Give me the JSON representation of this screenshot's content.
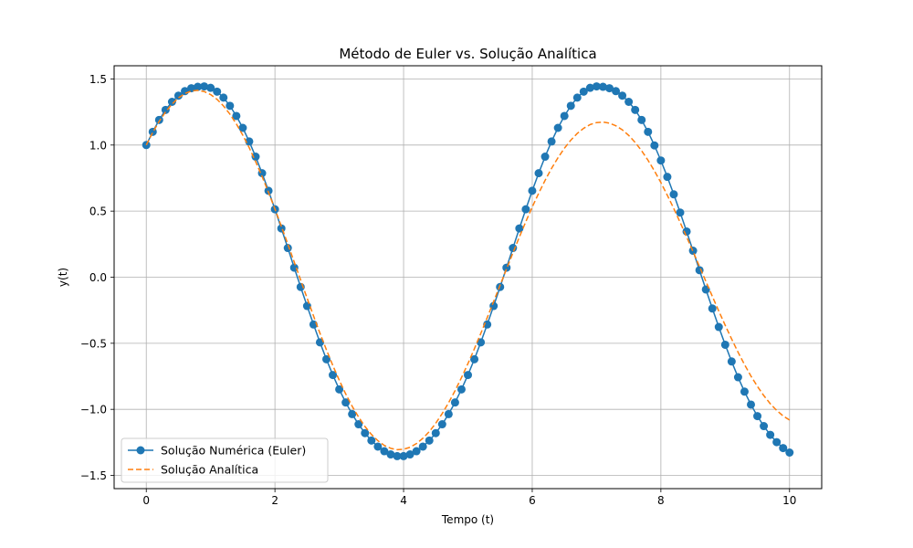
{
  "chart_data": {
    "type": "line",
    "title": "Método de Euler vs. Solução Analítica",
    "xlabel": "Tempo (t)",
    "ylabel": "y(t)",
    "xlim": [
      -0.5,
      10.5
    ],
    "ylim": [
      -1.6,
      1.6
    ],
    "xticks": [
      0,
      2,
      4,
      6,
      8,
      10
    ],
    "xtick_labels": [
      "0",
      "2",
      "4",
      "6",
      "8",
      "10"
    ],
    "yticks": [
      -1.5,
      -1.0,
      -0.5,
      0.0,
      0.5,
      1.0,
      1.5
    ],
    "ytick_labels": [
      "−1.5",
      "−1.0",
      "−0.5",
      "0.0",
      "0.5",
      "1.0",
      "1.5"
    ],
    "grid": true,
    "legend_position": "lower-left",
    "series": [
      {
        "name": "Solução Numérica (Euler)",
        "style": "solid-line-with-circle-markers",
        "color": "#1f77b4",
        "x": [
          0.0,
          0.1,
          0.2,
          0.3,
          0.4,
          0.5,
          0.6,
          0.7,
          0.8,
          0.9,
          1.0,
          1.1,
          1.2,
          1.3,
          1.4,
          1.5,
          1.6,
          1.7,
          1.8,
          1.9,
          2.0,
          2.1,
          2.2,
          2.3,
          2.4,
          2.5,
          2.6,
          2.7,
          2.8,
          2.9,
          3.0,
          3.1,
          3.2,
          3.3,
          3.4,
          3.5,
          3.6,
          3.7,
          3.8,
          3.9,
          4.0,
          4.1,
          4.2,
          4.3,
          4.4,
          4.5,
          4.6,
          4.7,
          4.8,
          4.9,
          5.0,
          5.1,
          5.2,
          5.3,
          5.4,
          5.5,
          5.6,
          5.7,
          5.8,
          5.9,
          6.0,
          6.1,
          6.2,
          6.3,
          6.4,
          6.5,
          6.6,
          6.7,
          6.8,
          6.9,
          7.0,
          7.1,
          7.2,
          7.3,
          7.4,
          7.5,
          7.6,
          7.7,
          7.8,
          7.9,
          8.0,
          8.1,
          8.2,
          8.3,
          8.4,
          8.5,
          8.6,
          8.7,
          8.8,
          8.9,
          9.0,
          9.1,
          9.2,
          9.3,
          9.4,
          9.5,
          9.6,
          9.7,
          9.8,
          9.9,
          10.0
        ],
        "y": [
          1.0,
          1.1,
          1.19,
          1.266,
          1.327,
          1.374,
          1.408,
          1.43,
          1.441,
          1.444,
          1.433,
          1.404,
          1.359,
          1.297,
          1.22,
          1.13,
          1.027,
          0.912,
          0.787,
          0.654,
          0.514,
          0.369,
          0.221,
          0.072,
          -0.074,
          -0.218,
          -0.358,
          -0.493,
          -0.621,
          -0.74,
          -0.849,
          -0.948,
          -1.036,
          -1.113,
          -1.18,
          -1.236,
          -1.282,
          -1.317,
          -1.341,
          -1.354,
          -1.354,
          -1.341,
          -1.317,
          -1.282,
          -1.236,
          -1.18,
          -1.113,
          -1.036,
          -0.948,
          -0.849,
          -0.74,
          -0.621,
          -0.493,
          -0.358,
          -0.218,
          -0.074,
          0.072,
          0.221,
          0.369,
          0.514,
          0.654,
          0.787,
          0.912,
          1.027,
          1.13,
          1.22,
          1.297,
          1.359,
          1.404,
          1.433,
          1.444,
          1.441,
          1.43,
          1.408,
          1.374,
          1.327,
          1.266,
          1.19,
          1.1,
          0.997,
          0.883,
          0.759,
          0.627,
          0.489,
          0.346,
          0.2,
          0.053,
          -0.093,
          -0.237,
          -0.377,
          -0.511,
          -0.638,
          -0.757,
          -0.866,
          -0.964,
          -1.051,
          -1.127,
          -1.193,
          -1.248,
          -1.293,
          -1.327
        ]
      },
      {
        "name": "Solução Analítica",
        "style": "dashed-line",
        "color": "#ff7f0e",
        "x": [
          0.0,
          0.1,
          0.2,
          0.3,
          0.4,
          0.5,
          0.6,
          0.7,
          0.8,
          0.9,
          1.0,
          1.1,
          1.2,
          1.3,
          1.4,
          1.5,
          1.6,
          1.7,
          1.8,
          1.9,
          2.0,
          2.1,
          2.2,
          2.3,
          2.4,
          2.5,
          2.6,
          2.7,
          2.8,
          2.9,
          3.0,
          3.1,
          3.2,
          3.3,
          3.4,
          3.5,
          3.6,
          3.7,
          3.8,
          3.9,
          4.0,
          4.1,
          4.2,
          4.3,
          4.4,
          4.5,
          4.6,
          4.7,
          4.8,
          4.9,
          5.0,
          5.1,
          5.2,
          5.3,
          5.4,
          5.5,
          5.6,
          5.7,
          5.8,
          5.9,
          6.0,
          6.1,
          6.2,
          6.3,
          6.4,
          6.5,
          6.6,
          6.7,
          6.8,
          6.9,
          7.0,
          7.1,
          7.2,
          7.3,
          7.4,
          7.5,
          7.6,
          7.7,
          7.8,
          7.9,
          8.0,
          8.1,
          8.2,
          8.3,
          8.4,
          8.5,
          8.6,
          8.7,
          8.8,
          8.9,
          9.0,
          9.1,
          9.2,
          9.3,
          9.4,
          9.5,
          9.6,
          9.7,
          9.8,
          9.9,
          10.0
        ],
        "y": [
          1.0,
          1.095,
          1.179,
          1.251,
          1.31,
          1.357,
          1.39,
          1.409,
          1.414,
          1.405,
          1.382,
          1.346,
          1.296,
          1.234,
          1.16,
          1.075,
          0.98,
          0.875,
          0.762,
          0.642,
          0.516,
          0.385,
          0.251,
          0.115,
          -0.022,
          -0.158,
          -0.293,
          -0.424,
          -0.549,
          -0.668,
          -0.78,
          -0.883,
          -0.976,
          -1.058,
          -1.13,
          -1.19,
          -1.237,
          -1.273,
          -1.295,
          -1.305,
          -1.302,
          -1.287,
          -1.259,
          -1.219,
          -1.168,
          -1.105,
          -1.032,
          -0.95,
          -0.859,
          -0.76,
          -0.654,
          -0.542,
          -0.426,
          -0.306,
          -0.184,
          -0.061,
          0.062,
          0.184,
          0.304,
          0.42,
          0.531,
          0.635,
          0.733,
          0.823,
          0.904,
          0.976,
          1.037,
          1.088,
          1.127,
          1.155,
          1.17,
          1.174,
          1.166,
          1.146,
          1.115,
          1.073,
          1.02,
          0.957,
          0.885,
          0.804,
          0.716,
          0.62,
          0.52,
          0.414,
          0.305,
          0.194,
          0.081,
          -0.032,
          -0.145,
          -0.256,
          -0.364,
          -0.468,
          -0.568,
          -0.661,
          -0.748,
          -0.826,
          -0.896,
          -0.957,
          -1.008,
          -1.05,
          -1.081
        ]
      }
    ]
  }
}
